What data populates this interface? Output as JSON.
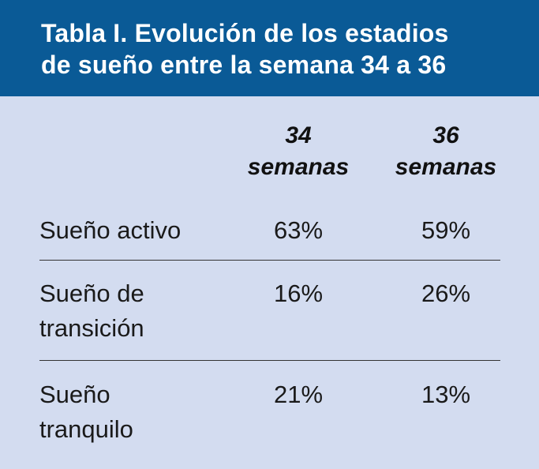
{
  "title": {
    "line1": "Tabla I.  Evolución de los estadios",
    "line2": "de sueño entre la semana 34 a 36"
  },
  "columns": [
    {
      "line1": "34",
      "line2": "semanas"
    },
    {
      "line1": "36",
      "line2": "semanas"
    }
  ],
  "rows": [
    {
      "label_lines": [
        "Sueño activo"
      ],
      "values": [
        "63%",
        "59%"
      ]
    },
    {
      "label_lines": [
        "Sueño de",
        "transición"
      ],
      "values": [
        "16%",
        "26%"
      ]
    },
    {
      "label_lines": [
        "Sueño",
        "tranquilo"
      ],
      "values": [
        "21%",
        "13%"
      ]
    }
  ],
  "colors": {
    "title_background": "#0a5a96",
    "title_text": "#ffffff",
    "table_background": "#d3dcf0",
    "divider": "#333333"
  }
}
